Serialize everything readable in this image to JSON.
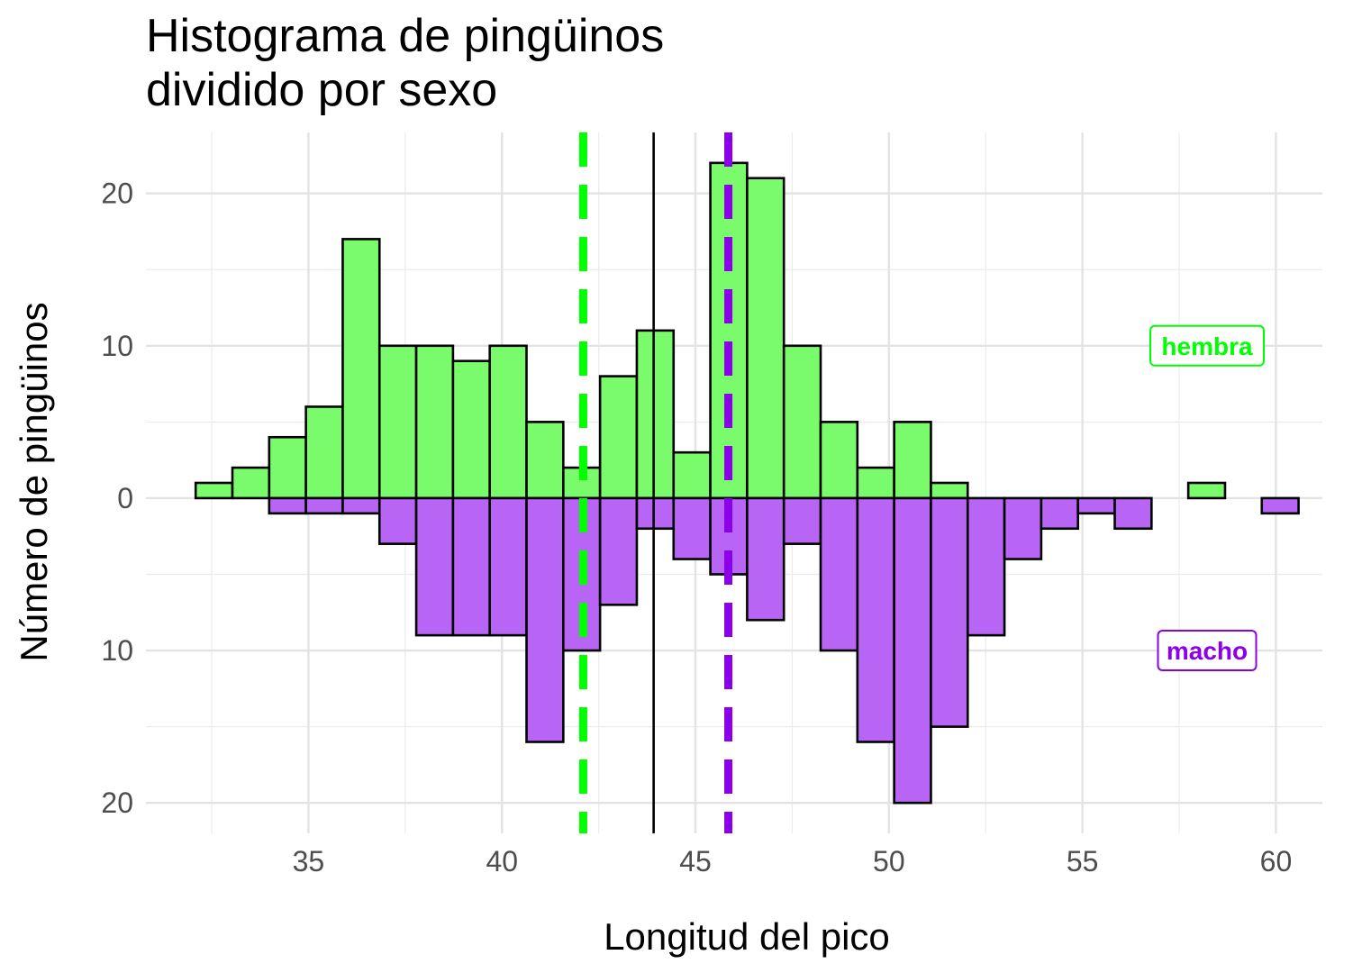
{
  "chart_data": {
    "type": "bar",
    "title_lines": [
      "Histograma de pingüinos",
      "dividido por sexo"
    ],
    "xlabel": "Longitud del pico",
    "ylabel": "Número de pingüinos",
    "xlim": [
      30.8,
      61.2
    ],
    "ylim": [
      -22,
      24
    ],
    "x_ticks": [
      35,
      40,
      45,
      50,
      55,
      60
    ],
    "y_ticks": [
      {
        "value": 20,
        "label": "20"
      },
      {
        "value": 10,
        "label": "10"
      },
      {
        "value": 0,
        "label": "0"
      },
      {
        "value": -10,
        "label": "10"
      },
      {
        "value": -20,
        "label": "20"
      }
    ],
    "bin_width": 0.95,
    "bin_centers": [
      32.56,
      33.51,
      34.46,
      35.41,
      36.36,
      37.31,
      38.26,
      39.21,
      40.16,
      41.11,
      42.06,
      43.01,
      43.96,
      44.91,
      45.86,
      46.81,
      47.76,
      48.71,
      49.66,
      50.61,
      51.56,
      52.51,
      53.46,
      54.41,
      55.36,
      56.31,
      57.26,
      58.21,
      59.16,
      60.11
    ],
    "series": [
      {
        "name": "hembra",
        "color": "#00ff00",
        "fill": "#79fb6b",
        "values": [
          1,
          2,
          4,
          6,
          17,
          10,
          10,
          9,
          10,
          5,
          2,
          8,
          11,
          3,
          22,
          21,
          10,
          5,
          2,
          5,
          1,
          0,
          0,
          0,
          0,
          0,
          0,
          1,
          0,
          0
        ],
        "mean": 42.1
      },
      {
        "name": "macho",
        "color": "#8b00e8",
        "fill": "#b865f5",
        "values": [
          0,
          0,
          1,
          1,
          1,
          3,
          9,
          9,
          9,
          16,
          10,
          7,
          2,
          4,
          5,
          8,
          3,
          10,
          16,
          20,
          15,
          9,
          4,
          2,
          1,
          2,
          0,
          0,
          0,
          1
        ],
        "mean": 45.85
      }
    ],
    "overall_mean": 43.92,
    "legend": [
      {
        "label": "hembra",
        "color": "#00ff00",
        "y": 10
      },
      {
        "label": "macho",
        "color": "#8b00e8",
        "y": -10
      }
    ],
    "grid": true
  }
}
